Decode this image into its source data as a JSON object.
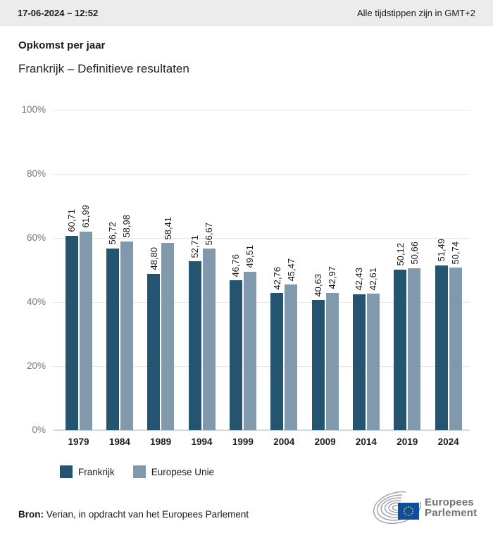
{
  "header": {
    "datetime": "17-06-2024 – 12:52",
    "timezone_note": "Alle tijdstippen zijn in GMT+2"
  },
  "title": "Opkomst per jaar",
  "subtitle": "Frankrijk – Definitieve resultaten",
  "chart_data": {
    "type": "bar",
    "categories": [
      "1979",
      "1984",
      "1989",
      "1994",
      "1999",
      "2004",
      "2009",
      "2014",
      "2019",
      "2024"
    ],
    "series": [
      {
        "name": "Frankrijk",
        "color": "#255470",
        "values": [
          60.71,
          56.72,
          48.8,
          52.71,
          46.76,
          42.76,
          40.63,
          42.43,
          50.12,
          51.49
        ],
        "labels": [
          "60,71",
          "56,72",
          "48,80",
          "52,71",
          "46,76",
          "42,76",
          "40,63",
          "42,43",
          "50,12",
          "51,49"
        ]
      },
      {
        "name": "Europese Unie",
        "color": "#8199AC",
        "values": [
          61.99,
          58.98,
          58.41,
          56.67,
          49.51,
          45.47,
          42.97,
          42.61,
          50.66,
          50.74
        ],
        "labels": [
          "61,99",
          "58,98",
          "58,41",
          "56,67",
          "49,51",
          "45,47",
          "42,97",
          "42,61",
          "50,66",
          "50,74"
        ]
      }
    ],
    "title": "Opkomst per jaar",
    "xlabel": "",
    "ylabel": "",
    "ylim": [
      0,
      100
    ],
    "yticks": [
      "0%",
      "20%",
      "40%",
      "60%",
      "80%",
      "100%"
    ],
    "grid": true,
    "legend_position": "bottom",
    "value_label_decimal_separator": ","
  },
  "footer": {
    "source_label": "Bron:",
    "source_text": " Verian, in opdracht van het Europees Parlement"
  },
  "logo": {
    "line1": "Europees",
    "line2": "Parlement",
    "flag_color": "#0e4ea2",
    "star_color": "#ffd617"
  }
}
